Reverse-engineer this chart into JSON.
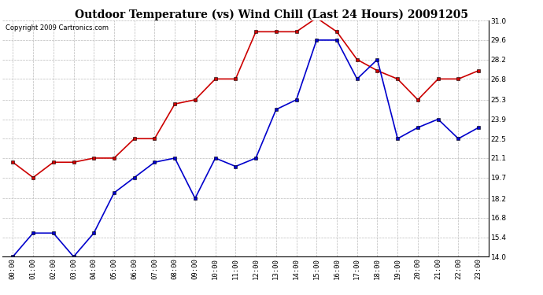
{
  "title": "Outdoor Temperature (vs) Wind Chill (Last 24 Hours) 20091205",
  "copyright": "Copyright 2009 Cartronics.com",
  "x_labels": [
    "00:00",
    "01:00",
    "02:00",
    "03:00",
    "04:00",
    "05:00",
    "06:00",
    "07:00",
    "08:00",
    "09:00",
    "10:00",
    "11:00",
    "12:00",
    "13:00",
    "14:00",
    "15:00",
    "16:00",
    "17:00",
    "18:00",
    "19:00",
    "20:00",
    "21:00",
    "22:00",
    "23:00"
  ],
  "temp_data": [
    14.0,
    15.7,
    15.7,
    14.0,
    15.7,
    18.6,
    19.7,
    20.8,
    21.1,
    18.2,
    21.1,
    20.5,
    21.1,
    24.6,
    25.3,
    29.6,
    29.6,
    26.8,
    28.2,
    22.5,
    23.3,
    23.9,
    22.5,
    23.3
  ],
  "wind_chill_data": [
    20.8,
    19.7,
    20.8,
    20.8,
    21.1,
    21.1,
    22.5,
    22.5,
    25.0,
    25.3,
    26.8,
    26.8,
    30.2,
    30.2,
    30.2,
    31.2,
    30.2,
    28.2,
    27.4,
    26.8,
    25.3,
    26.8,
    26.8,
    27.4
  ],
  "temp_color": "#0000cc",
  "wind_chill_color": "#cc0000",
  "bg_color": "#ffffff",
  "plot_bg_color": "#ffffff",
  "grid_color": "#bbbbbb",
  "ylim_min": 14.0,
  "ylim_max": 31.0,
  "yticks": [
    14.0,
    15.4,
    16.8,
    18.2,
    19.7,
    21.1,
    22.5,
    23.9,
    25.3,
    26.8,
    28.2,
    29.6,
    31.0
  ],
  "marker": "s",
  "marker_size": 3,
  "linewidth": 1.2,
  "title_fontsize": 10,
  "tick_fontsize": 6.5,
  "copyright_fontsize": 6
}
